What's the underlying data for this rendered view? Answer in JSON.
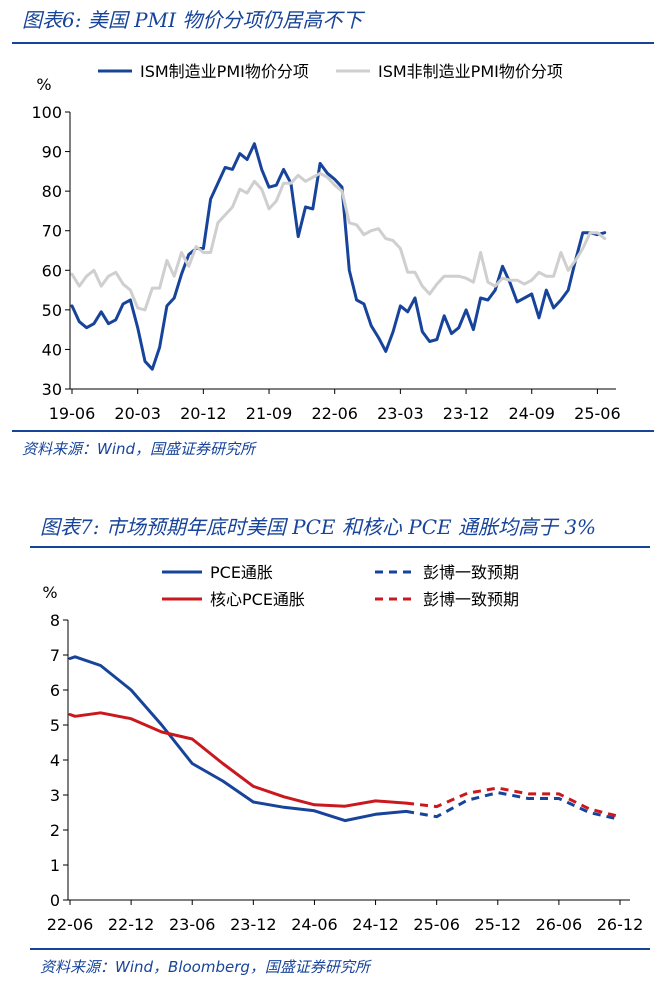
{
  "figure6": {
    "title": "图表6:  美国 PMI 物价分项仍居高不下",
    "source": "资料来源：Wind，国盛证券研究所"
  },
  "figure7": {
    "title": "图表7:  市场预期年底时美国 PCE 和核心 PCE 通胀均高于 3%",
    "source": "资料来源：Wind，Bloomberg，国盛证券研究所"
  },
  "chart_data": [
    {
      "type": "line",
      "ylabel": "%",
      "ylim": [
        30,
        100
      ],
      "yticks": [
        30,
        40,
        50,
        60,
        70,
        80,
        90,
        100
      ],
      "xlim": [
        0,
        74
      ],
      "xticks": [
        {
          "i": 0,
          "label": "19-06"
        },
        {
          "i": 9,
          "label": "20-03"
        },
        {
          "i": 18,
          "label": "20-12"
        },
        {
          "i": 27,
          "label": "21-09"
        },
        {
          "i": 36,
          "label": "22-06"
        },
        {
          "i": 45,
          "label": "23-03"
        },
        {
          "i": 54,
          "label": "23-12"
        },
        {
          "i": 63,
          "label": "24-09"
        },
        {
          "i": 72,
          "label": "25-06"
        }
      ],
      "legend_position": "top",
      "series": [
        {
          "name": "ISM制造业PMI物价分项",
          "color": "#17449a",
          "values": [
            51.0,
            47.0,
            45.5,
            46.5,
            49.5,
            46.5,
            47.5,
            51.5,
            52.5,
            45.5,
            37.0,
            35.0,
            40.5,
            51.0,
            53.0,
            59.0,
            64.0,
            65.5,
            65.5,
            78.0,
            82.0,
            86.0,
            85.5,
            89.5,
            88.0,
            92.0,
            85.5,
            81.0,
            81.5,
            85.5,
            82.0,
            68.5,
            76.0,
            75.5,
            87.0,
            84.5,
            83.0,
            81.0,
            60.0,
            52.5,
            51.5,
            46.0,
            43.0,
            39.5,
            44.5,
            51.0,
            49.5,
            53.0,
            44.5,
            42.0,
            42.5,
            48.5,
            44.0,
            45.5,
            50.0,
            45.0,
            53.0,
            52.5,
            55.0,
            61.0,
            57.0,
            52.0,
            53.0,
            54.0,
            48.0,
            55.0,
            50.5,
            52.5,
            55.0,
            62.5,
            69.5,
            69.5,
            69.0,
            69.5
          ]
        },
        {
          "name": "ISM非制造业PMI物价分项",
          "color": "#cfcfcf",
          "values": [
            59.0,
            56.0,
            58.5,
            60.0,
            56.0,
            58.5,
            59.5,
            56.5,
            55.0,
            50.5,
            50.0,
            55.5,
            55.5,
            62.5,
            58.5,
            64.5,
            61.0,
            66.0,
            64.5,
            64.5,
            72.0,
            74.0,
            76.0,
            80.5,
            79.5,
            82.5,
            80.5,
            75.5,
            77.5,
            82.0,
            82.0,
            84.0,
            82.5,
            83.5,
            84.5,
            83.5,
            81.5,
            80.0,
            72.0,
            71.5,
            69.0,
            70.0,
            70.5,
            68.0,
            67.5,
            65.5,
            59.5,
            59.5,
            56.0,
            54.0,
            56.5,
            58.5,
            58.5,
            58.5,
            58.0,
            57.0,
            64.5,
            57.0,
            56.0,
            58.0,
            57.5,
            57.5,
            56.5,
            57.5,
            59.5,
            58.5,
            58.5,
            64.5,
            60.0,
            62.5,
            65.5,
            69.5,
            69.5,
            68.0
          ]
        }
      ]
    },
    {
      "type": "line",
      "ylabel": "%",
      "ylim": [
        0,
        8
      ],
      "yticks": [
        0,
        1,
        2,
        3,
        4,
        5,
        6,
        7,
        8
      ],
      "xlim": [
        0,
        54
      ],
      "xticks": [
        {
          "i": 0,
          "label": "22-06"
        },
        {
          "i": 6,
          "label": "22-12"
        },
        {
          "i": 12,
          "label": "23-06"
        },
        {
          "i": 18,
          "label": "23-12"
        },
        {
          "i": 24,
          "label": "24-06"
        },
        {
          "i": 30,
          "label": "24-12"
        },
        {
          "i": 36,
          "label": "25-06"
        },
        {
          "i": 42,
          "label": "25-12"
        },
        {
          "i": 48,
          "label": "26-06"
        },
        {
          "i": 54,
          "label": "26-12"
        }
      ],
      "legend_position": "top",
      "series": [
        {
          "name": "PCE通胀",
          "color": "#17449a",
          "dashed": false,
          "points": [
            [
              0,
              6.9
            ],
            [
              0.5,
              6.95
            ],
            [
              3,
              6.7
            ],
            [
              6,
              6.0
            ],
            [
              9,
              5.0
            ],
            [
              12,
              3.9
            ],
            [
              15,
              3.4
            ],
            [
              18,
              2.8
            ],
            [
              21,
              2.65
            ],
            [
              24,
              2.55
            ],
            [
              27,
              2.27
            ],
            [
              30,
              2.45
            ],
            [
              33,
              2.53
            ]
          ]
        },
        {
          "name": "彭博一致预期",
          "color": "#17449a",
          "dashed": true,
          "points": [
            [
              33,
              2.53
            ],
            [
              36,
              2.38
            ],
            [
              39,
              2.85
            ],
            [
              42,
              3.07
            ],
            [
              45,
              2.9
            ],
            [
              48,
              2.9
            ],
            [
              51,
              2.5
            ],
            [
              54,
              2.3
            ]
          ]
        },
        {
          "name": "核心PCE通胀",
          "color": "#c9191e",
          "dashed": false,
          "points": [
            [
              0,
              5.3
            ],
            [
              0.5,
              5.25
            ],
            [
              3,
              5.35
            ],
            [
              6,
              5.18
            ],
            [
              9,
              4.8
            ],
            [
              12,
              4.6
            ],
            [
              15,
              3.9
            ],
            [
              18,
              3.25
            ],
            [
              21,
              2.95
            ],
            [
              24,
              2.72
            ],
            [
              27,
              2.68
            ],
            [
              30,
              2.83
            ],
            [
              33,
              2.77
            ]
          ]
        },
        {
          "name": "彭博一致预期",
          "color": "#c9191e",
          "dashed": true,
          "points": [
            [
              33,
              2.77
            ],
            [
              36,
              2.67
            ],
            [
              39,
              3.05
            ],
            [
              42,
              3.2
            ],
            [
              45,
              3.03
            ],
            [
              48,
              3.03
            ],
            [
              51,
              2.6
            ],
            [
              54,
              2.38
            ]
          ]
        }
      ]
    }
  ]
}
